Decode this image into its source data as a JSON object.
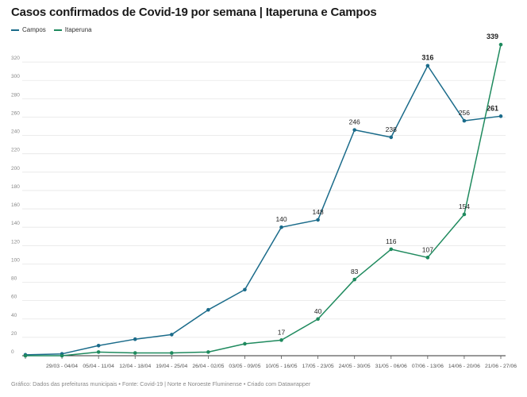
{
  "chart_data": {
    "type": "line",
    "title": "Casos confirmados de Covid-19 por semana | Itaperuna e Campos",
    "categories": [
      "",
      "29/03 - 04/04",
      "05/04 - 11/04",
      "12/04 - 18/04",
      "19/04 - 25/04",
      "26/04 - 02/05",
      "03/05 - 09/05",
      "10/05 - 16/05",
      "17/05 - 23/05",
      "24/05 - 30/05",
      "31/05 - 06/06",
      "07/06 - 13/06",
      "14/06 - 20/06",
      "21/06 - 27/06"
    ],
    "series": [
      {
        "name": "Campos",
        "color": "#1a6b8a",
        "values": [
          1,
          2,
          11,
          18,
          23,
          50,
          72,
          140,
          148,
          246,
          238,
          316,
          256,
          261
        ]
      },
      {
        "name": "Itaperuna",
        "color": "#1f8a5e",
        "values": [
          0,
          0,
          4,
          3,
          3,
          4,
          13,
          17,
          40,
          83,
          116,
          107,
          154,
          339
        ]
      }
    ],
    "data_labels": {
      "Campos": {
        "7": "140",
        "8": "148",
        "9": "246",
        "10": "238",
        "11": "316",
        "12": "256",
        "13": "261"
      },
      "Itaperuna": {
        "7": "17",
        "8": "40",
        "9": "83",
        "10": "116",
        "11": "107",
        "12": "154",
        "13": "339"
      }
    },
    "bold_labels": {
      "Campos": [
        "11",
        "13"
      ],
      "Itaperuna": [
        "13"
      ]
    },
    "yticks": [
      0,
      20,
      40,
      60,
      80,
      100,
      120,
      140,
      160,
      180,
      200,
      220,
      240,
      260,
      280,
      300,
      320
    ],
    "ylim": [
      0,
      340
    ],
    "grid": true,
    "legend_position": "top-left"
  },
  "footer": "Gráfico: Dados das prefeituras municipais • Fonte: Covid-19 | Norte e Noroeste Fluminense • Criado com Datawrapper"
}
